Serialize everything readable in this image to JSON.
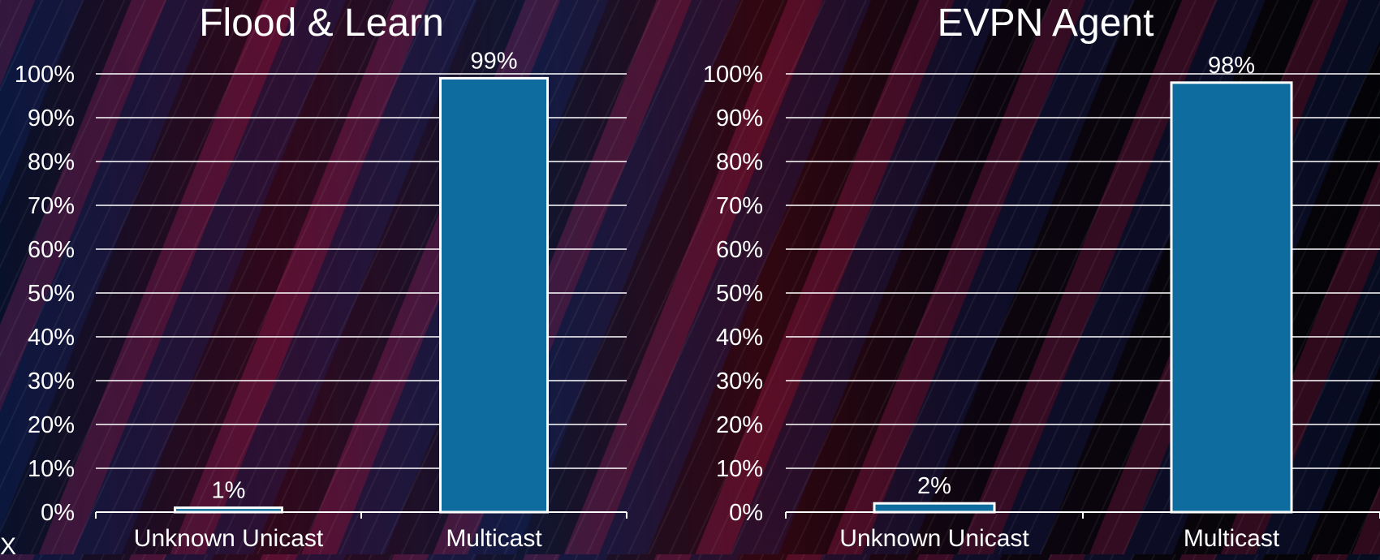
{
  "colors": {
    "bar_fill": "#0e6d9e",
    "bar_stroke": "#ffffff",
    "gridline": "#ffffff",
    "text": "#ffffff"
  },
  "stray_glyph": "X",
  "chart_data": [
    {
      "type": "bar",
      "title": "Flood & Learn",
      "categories": [
        "Unknown Unicast",
        "Multicast"
      ],
      "values": [
        1,
        99
      ],
      "data_labels": [
        "1%",
        "99%"
      ],
      "ylim": [
        0,
        100
      ],
      "y_ticks": [
        "0%",
        "10%",
        "20%",
        "30%",
        "40%",
        "50%",
        "60%",
        "70%",
        "80%",
        "90%",
        "100%"
      ],
      "grid": true,
      "legend": "none"
    },
    {
      "type": "bar",
      "title": "EVPN Agent",
      "categories": [
        "Unknown Unicast",
        "Multicast"
      ],
      "values": [
        2,
        98
      ],
      "data_labels": [
        "2%",
        "98%"
      ],
      "ylim": [
        0,
        100
      ],
      "y_ticks": [
        "0%",
        "10%",
        "20%",
        "30%",
        "40%",
        "50%",
        "60%",
        "70%",
        "80%",
        "90%",
        "100%"
      ],
      "grid": true,
      "legend": "none"
    }
  ]
}
